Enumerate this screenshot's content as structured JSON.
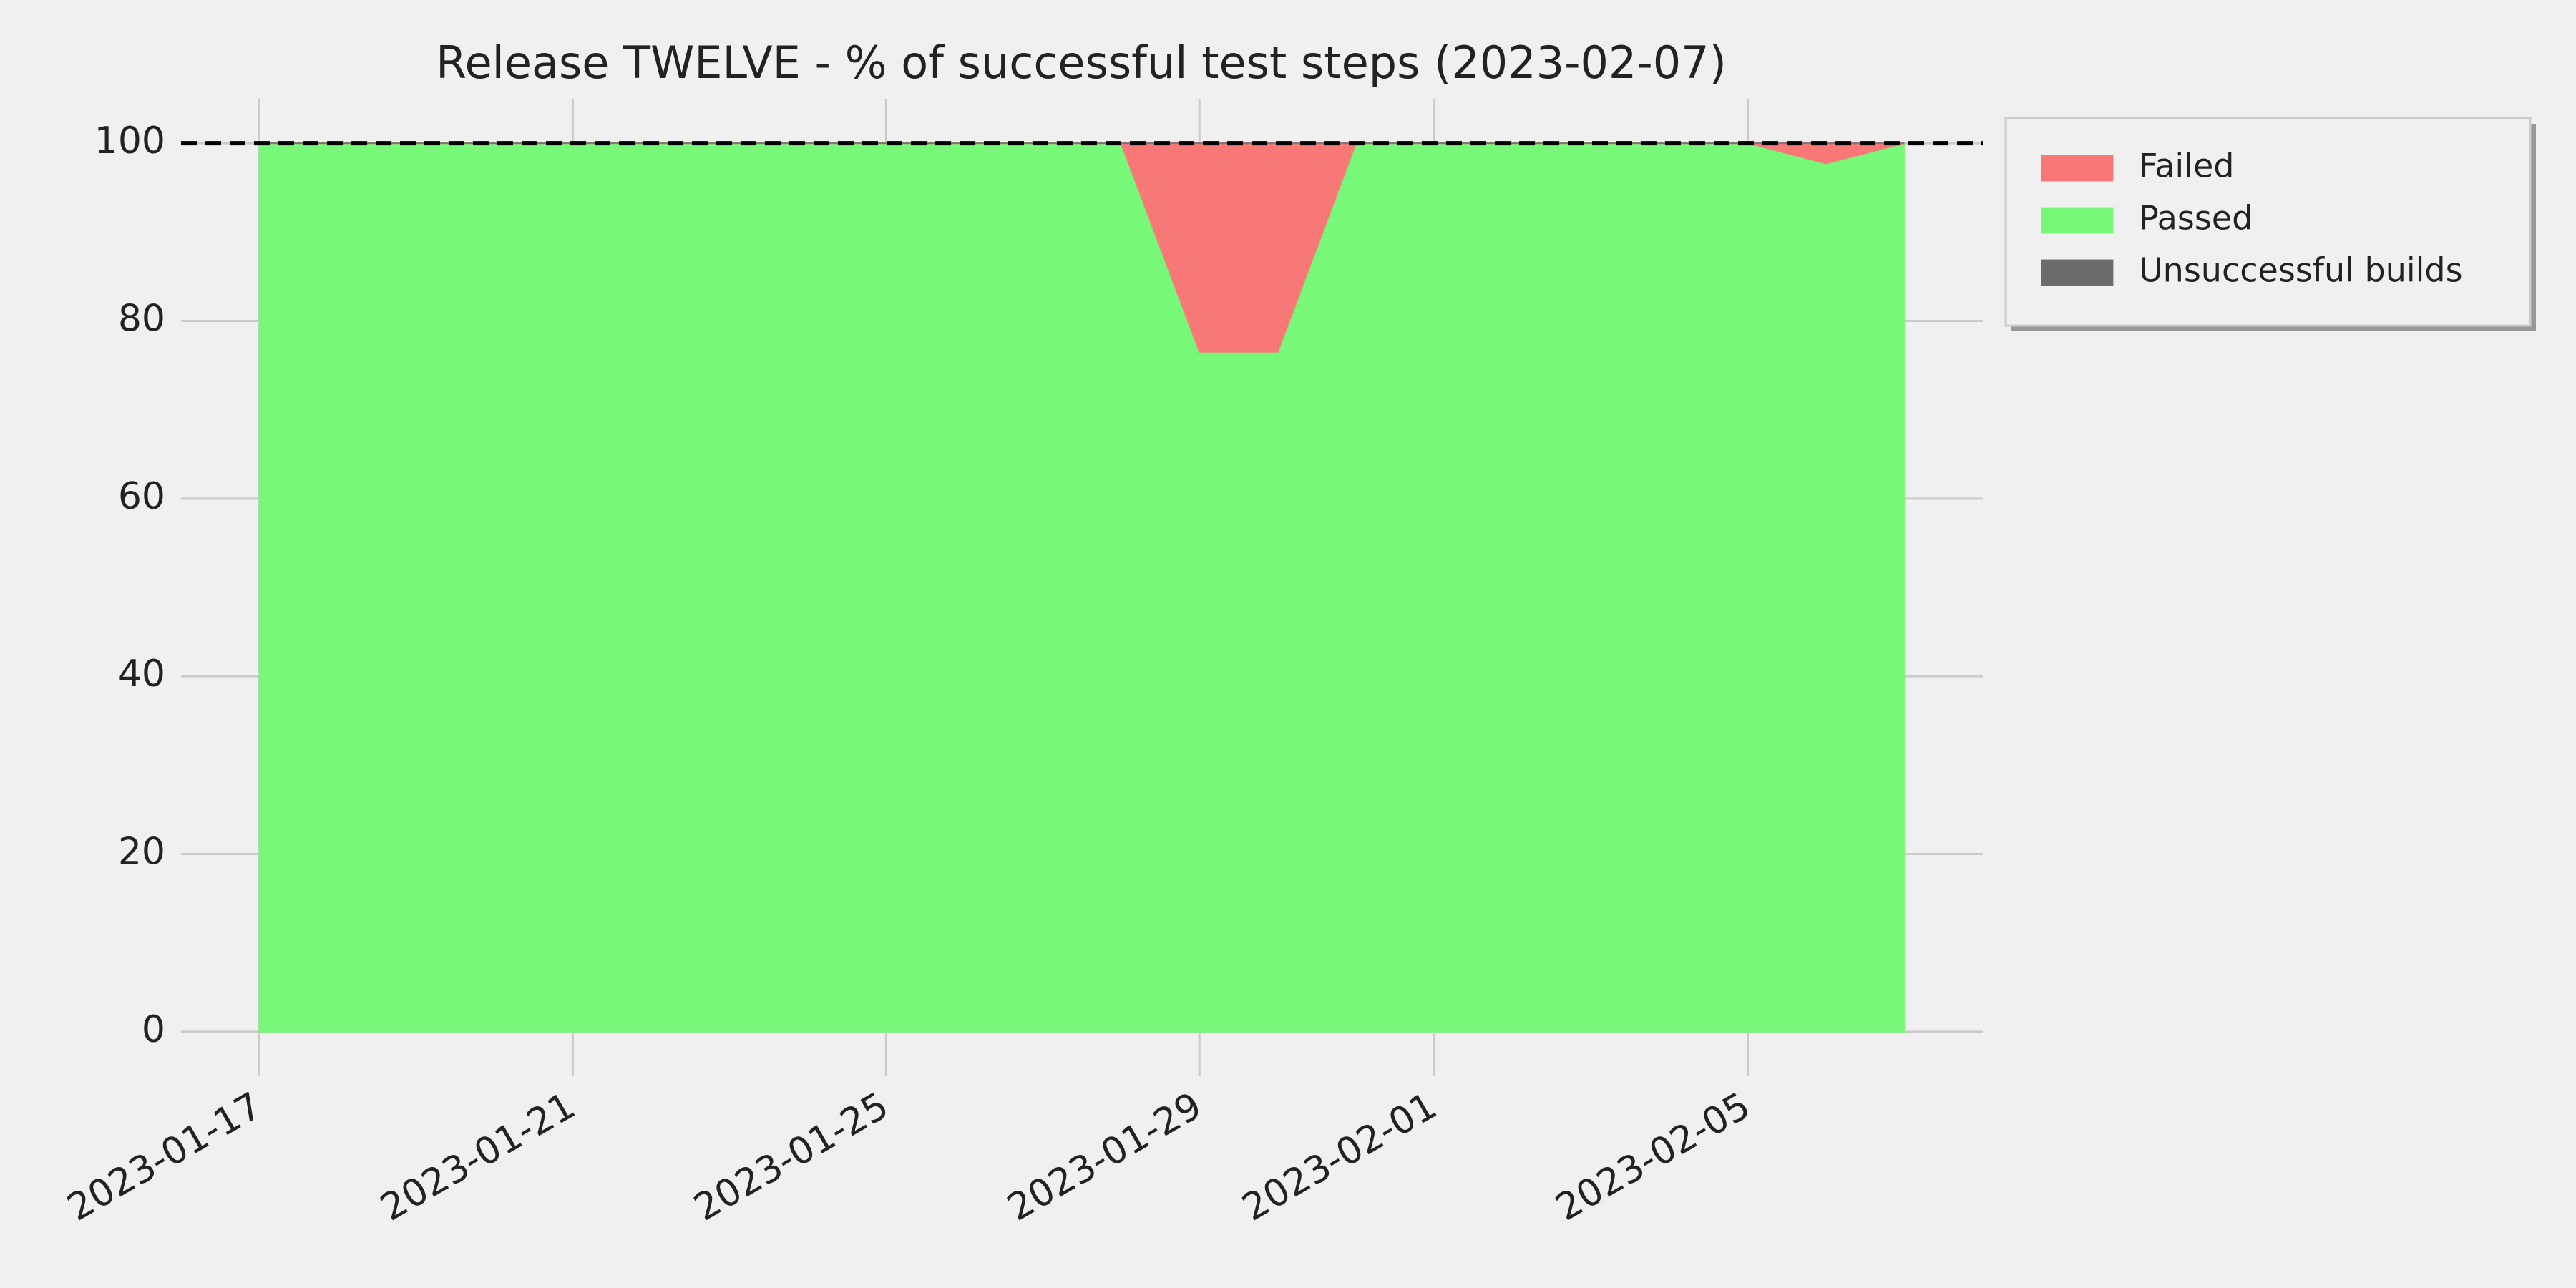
{
  "chart_data": {
    "type": "stacked-area",
    "title": "Release TWELVE - % of successful test steps (2023-02-07)",
    "x": [
      "2023-01-17",
      "2023-01-18",
      "2023-01-19",
      "2023-01-20",
      "2023-01-21",
      "2023-01-22",
      "2023-01-23",
      "2023-01-24",
      "2023-01-25",
      "2023-01-26",
      "2023-01-27",
      "2023-01-28",
      "2023-01-29",
      "2023-01-30",
      "2023-01-31",
      "2023-02-01",
      "2023-02-02",
      "2023-02-03",
      "2023-02-04",
      "2023-02-05",
      "2023-02-06",
      "2023-02-07"
    ],
    "series": [
      {
        "name": "Passed",
        "color": "#78f878",
        "values": [
          100,
          100,
          100,
          100,
          100,
          100,
          100,
          100,
          100,
          100,
          100,
          100,
          76.5,
          76.5,
          100,
          100,
          100,
          100,
          100,
          100,
          97.7,
          100
        ]
      },
      {
        "name": "Failed",
        "color": "#f87878",
        "values": [
          0,
          0,
          0,
          0,
          0,
          0,
          0,
          0,
          0,
          0,
          0,
          0,
          23.5,
          23.5,
          0,
          0,
          0,
          0,
          0,
          0,
          2.3,
          0
        ]
      },
      {
        "name": "Unsuccessful builds",
        "color": "#6b6b6b",
        "values": [
          0,
          0,
          0,
          0,
          0,
          0,
          0,
          0,
          0,
          0,
          0,
          0,
          0,
          0,
          0,
          0,
          0,
          0,
          0,
          0,
          0,
          0
        ]
      }
    ],
    "legend_order": [
      "Failed",
      "Passed",
      "Unsuccessful builds"
    ],
    "legend": "outside-upper-right",
    "reference_line": 100,
    "xlim": [
      "2023-01-16",
      "2023-02-08"
    ],
    "xticks": [
      "2023-01-17",
      "2023-01-21",
      "2023-01-25",
      "2023-01-29",
      "2023-02-01",
      "2023-02-05"
    ],
    "ylim": [
      -5,
      105
    ],
    "yticks": [
      0,
      20,
      40,
      60,
      80,
      100
    ],
    "grid": true
  }
}
